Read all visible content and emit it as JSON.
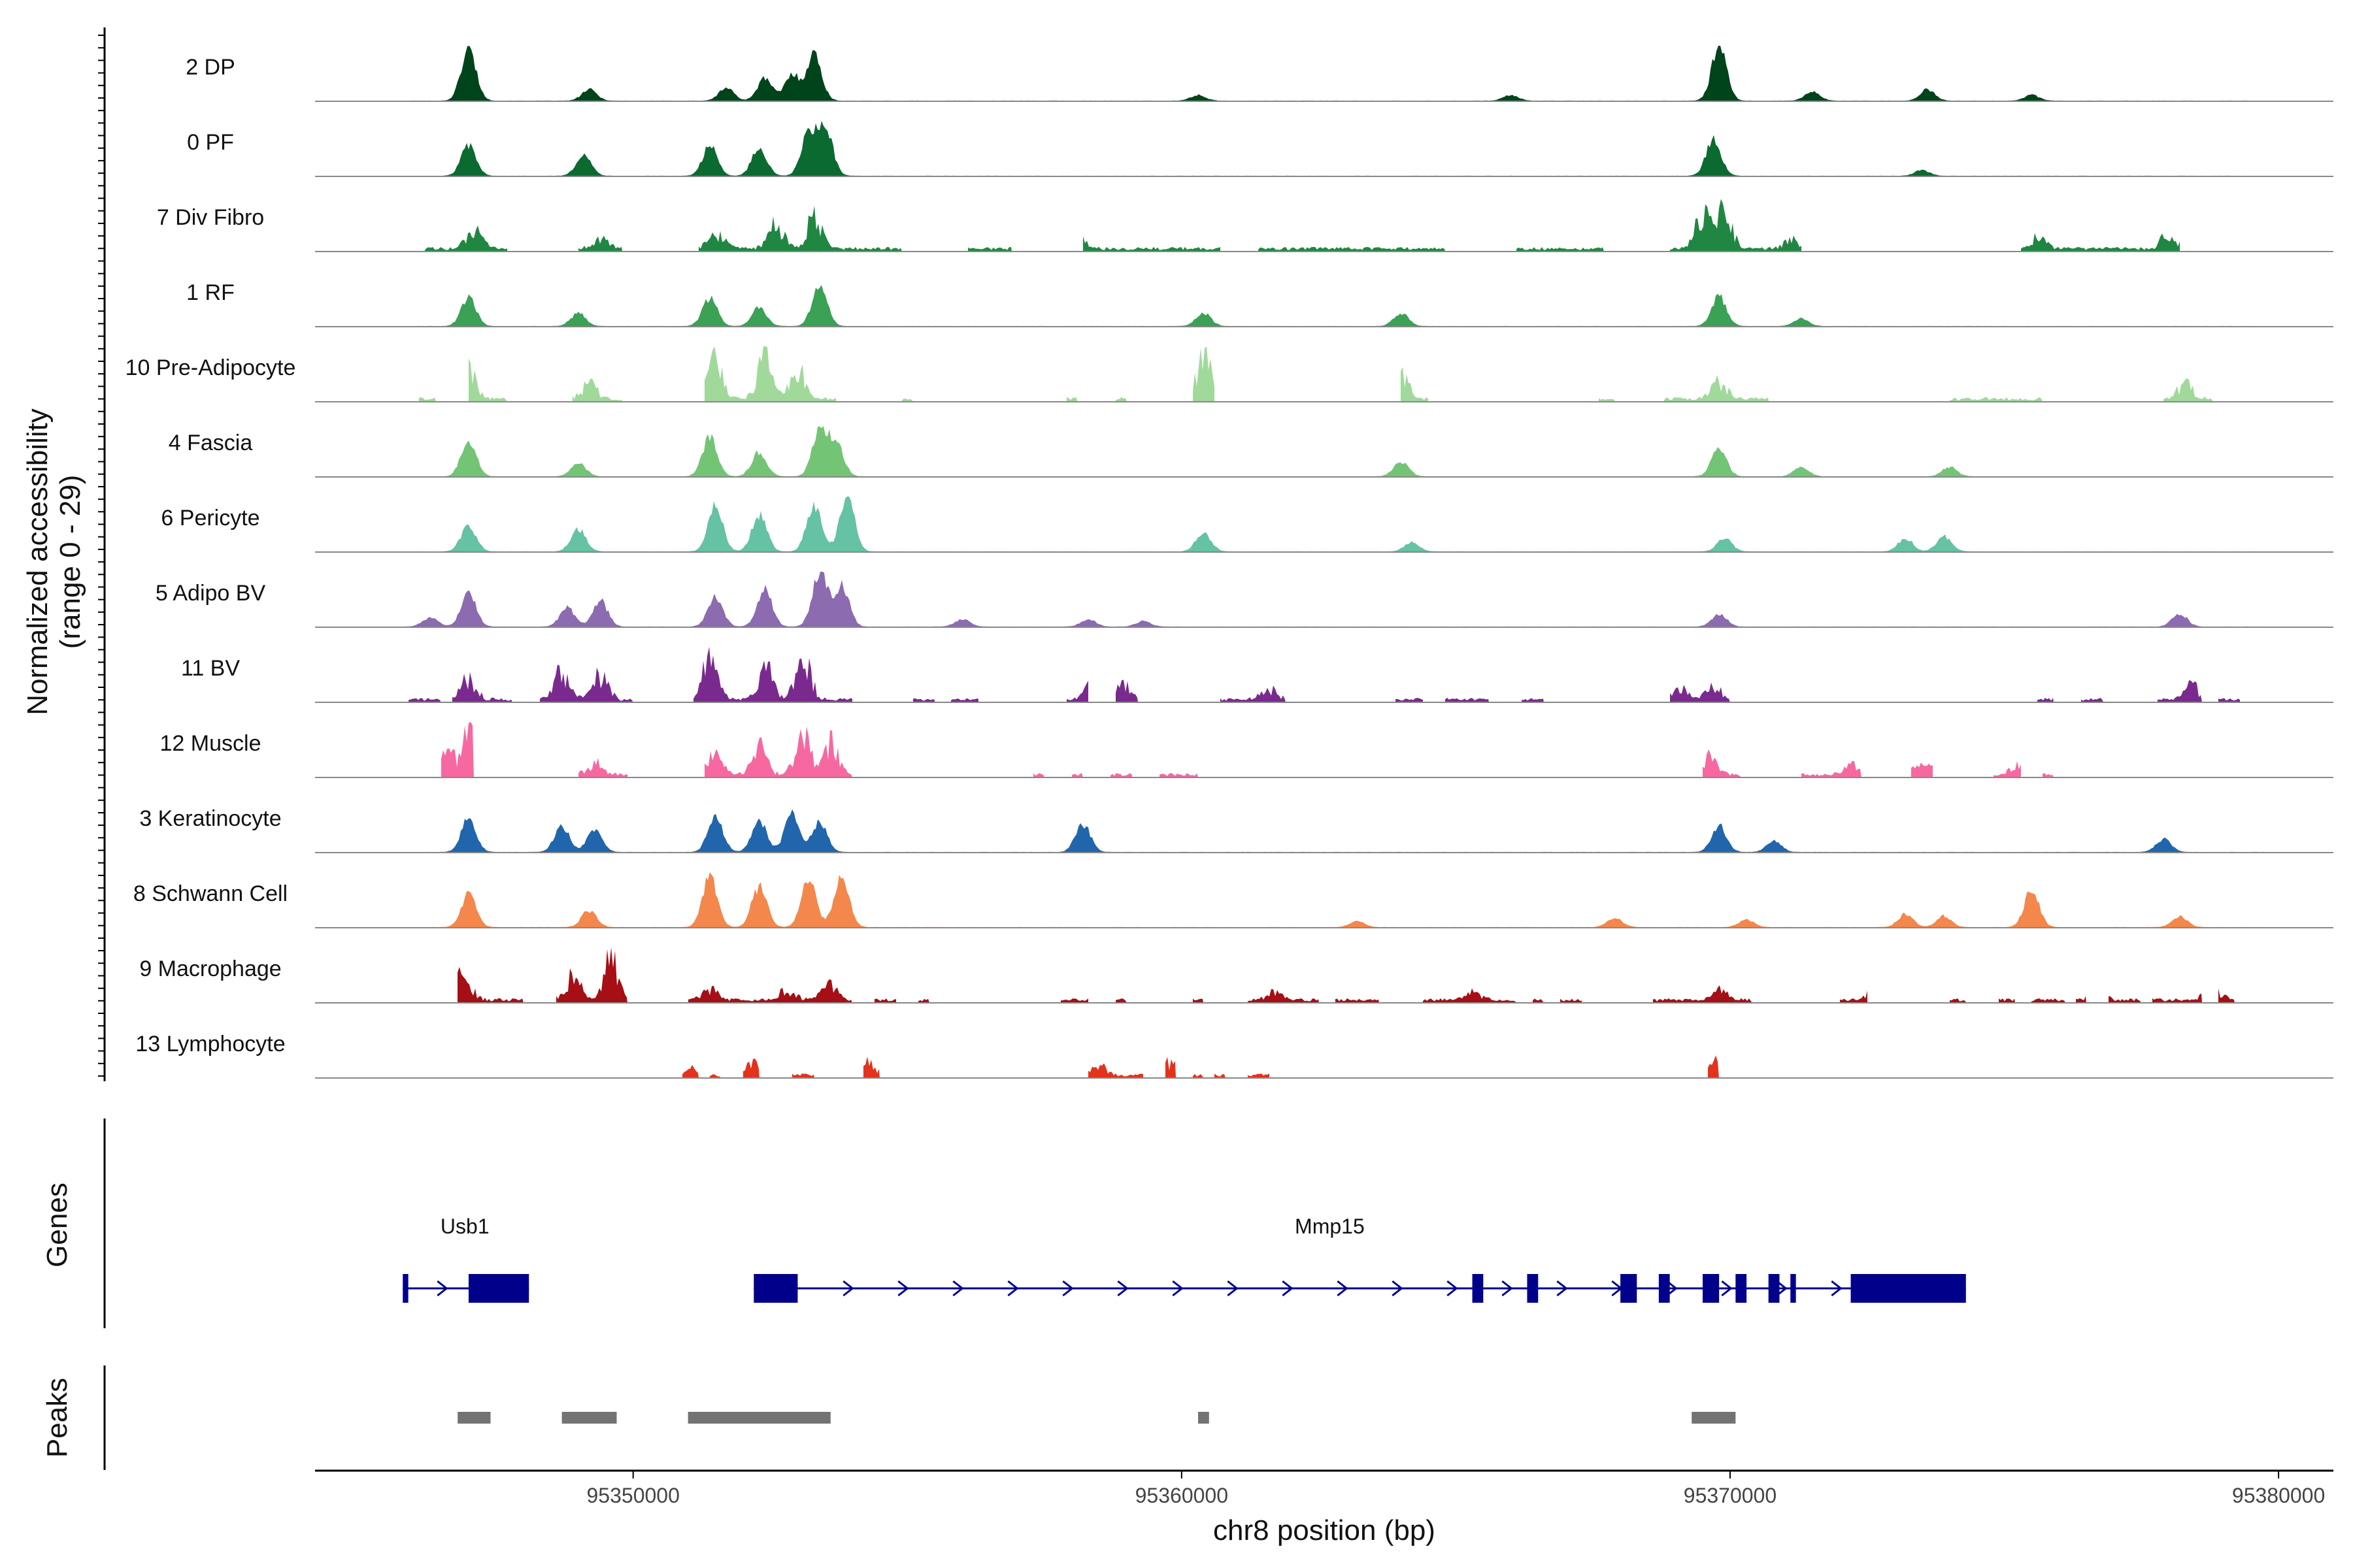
{
  "chart_data": {
    "type": "area",
    "title": "",
    "ylabel_line1": "Normalized accessibility",
    "ylabel_line2": "(range 0 - 29)",
    "xlabel": "chr8 position (bp)",
    "xlim": [
      95344200,
      95381000
    ],
    "ylim": [
      0,
      29
    ],
    "x_ticks": [
      95350000,
      95360000,
      95370000,
      95380000
    ],
    "x_tick_labels": [
      "95350000",
      "95360000",
      "95370000",
      "95380000"
    ],
    "series": [
      {
        "name": "2 DP",
        "color": "#00441b",
        "range": [
          95345900,
          95379600
        ],
        "peaks": [
          [
            95347000,
            28
          ],
          [
            95349200,
            6
          ],
          [
            95351700,
            7
          ],
          [
            95352400,
            12
          ],
          [
            95352900,
            14
          ],
          [
            95353300,
            25
          ],
          [
            95369800,
            29
          ],
          [
            95366000,
            3
          ],
          [
            95360300,
            3
          ],
          [
            95371500,
            5
          ],
          [
            95373600,
            6
          ],
          [
            95375500,
            3
          ]
        ]
      },
      {
        "name": "0 PF",
        "color": "#0b6a30",
        "range": [
          95346500,
          95379400
        ],
        "peaks": [
          [
            95347000,
            16
          ],
          [
            95349100,
            12
          ],
          [
            95351400,
            16
          ],
          [
            95352300,
            15
          ],
          [
            95353200,
            22
          ],
          [
            95353500,
            26
          ],
          [
            95369700,
            20
          ],
          [
            95373500,
            3
          ]
        ]
      },
      {
        "name": "7 Div Fibro",
        "color": "#1f8742",
        "range": [
          95346100,
          95378500
        ],
        "spiky": true,
        "segments": [
          [
            95346200,
            95347700
          ],
          [
            95349000,
            95349800
          ],
          [
            95351200,
            95354900
          ],
          [
            95356100,
            95356900
          ],
          [
            95358200,
            95360700
          ],
          [
            95361400,
            95364800
          ],
          [
            95366100,
            95367700
          ],
          [
            95368900,
            95371300
          ],
          [
            95375300,
            95378200
          ]
        ],
        "peaks": [
          [
            95347100,
            12
          ],
          [
            95349400,
            7
          ],
          [
            95351500,
            12
          ],
          [
            95352600,
            16
          ],
          [
            95353300,
            20
          ],
          [
            95358100,
            8
          ],
          [
            95369500,
            22
          ],
          [
            95369900,
            28
          ],
          [
            95371100,
            6
          ],
          [
            95375600,
            8
          ],
          [
            95378000,
            10
          ]
        ]
      },
      {
        "name": "1 RF",
        "color": "#3aa155",
        "range": [
          95346000,
          95379600
        ],
        "peaks": [
          [
            95347000,
            15
          ],
          [
            95349000,
            7
          ],
          [
            95351400,
            15
          ],
          [
            95352300,
            10
          ],
          [
            95353400,
            22
          ],
          [
            95360400,
            7
          ],
          [
            95364000,
            7
          ],
          [
            95369800,
            16
          ],
          [
            95371300,
            4
          ]
        ]
      },
      {
        "name": "10 Pre-Adipocyte",
        "color": "#a1d99b",
        "range": [
          95346000,
          95379000
        ],
        "spiky": true,
        "segments": [
          [
            95346100,
            95346400
          ],
          [
            95347000,
            95347700
          ],
          [
            95348900,
            95349800
          ],
          [
            95351300,
            95353700
          ],
          [
            95354900,
            95355100
          ],
          [
            95357900,
            95358100
          ],
          [
            95358800,
            95359000
          ],
          [
            95360200,
            95360600
          ],
          [
            95364000,
            95364500
          ],
          [
            95367600,
            95367900
          ],
          [
            95368800,
            95370700
          ],
          [
            95374000,
            95375700
          ],
          [
            95377900,
            95378800
          ]
        ],
        "peaks": [
          [
            95347000,
            20
          ],
          [
            95349200,
            10
          ],
          [
            95351500,
            26
          ],
          [
            95352400,
            27
          ],
          [
            95353000,
            20
          ],
          [
            95360400,
            29
          ],
          [
            95364000,
            17
          ],
          [
            95369800,
            12
          ],
          [
            95378300,
            10
          ]
        ]
      },
      {
        "name": "4 Fascia",
        "color": "#74c476",
        "range": [
          95346000,
          95379600
        ],
        "peaks": [
          [
            95347000,
            20
          ],
          [
            95349000,
            7
          ],
          [
            95351400,
            21
          ],
          [
            95352300,
            13
          ],
          [
            95353400,
            24
          ],
          [
            95353700,
            18
          ],
          [
            95364000,
            8
          ],
          [
            95369800,
            15
          ],
          [
            95371300,
            5
          ],
          [
            95374000,
            5
          ]
        ]
      },
      {
        "name": "6 Pericyte",
        "color": "#66c2a4",
        "range": [
          95346000,
          95379600
        ],
        "peaks": [
          [
            95347000,
            14
          ],
          [
            95349000,
            12
          ],
          [
            95351500,
            24
          ],
          [
            95352300,
            20
          ],
          [
            95353300,
            25
          ],
          [
            95353900,
            29
          ],
          [
            95360400,
            10
          ],
          [
            95364200,
            5
          ],
          [
            95369900,
            7
          ],
          [
            95373200,
            7
          ],
          [
            95373900,
            8
          ]
        ]
      },
      {
        "name": "5 Adipo BV",
        "color": "#8c6bb1",
        "range": [
          95345800,
          95379800
        ],
        "peaks": [
          [
            95346300,
            5
          ],
          [
            95347000,
            18
          ],
          [
            95348800,
            10
          ],
          [
            95349400,
            14
          ],
          [
            95351500,
            16
          ],
          [
            95352400,
            20
          ],
          [
            95353400,
            29
          ],
          [
            95353800,
            22
          ],
          [
            95356000,
            4
          ],
          [
            95358300,
            4
          ],
          [
            95359300,
            3
          ],
          [
            95369800,
            7
          ],
          [
            95378200,
            7
          ]
        ]
      },
      {
        "name": "11 BV",
        "color": "#7a2a8e",
        "range": [
          95345800,
          95379800
        ],
        "spiky": true,
        "segments": [
          [
            95345900,
            95346500
          ],
          [
            95346700,
            95347800
          ],
          [
            95348300,
            95350000
          ],
          [
            95351100,
            95354000
          ],
          [
            95355100,
            95355500
          ],
          [
            95355800,
            95356300
          ],
          [
            95357900,
            95358300
          ],
          [
            95358800,
            95359200
          ],
          [
            95360700,
            95361900
          ],
          [
            95363900,
            95364400
          ],
          [
            95364800,
            95365600
          ],
          [
            95366200,
            95366600
          ],
          [
            95368900,
            95370000
          ],
          [
            95375600,
            95375900
          ],
          [
            95376400,
            95376800
          ],
          [
            95377800,
            95378600
          ],
          [
            95378900,
            95379300
          ]
        ],
        "peaks": [
          [
            95347000,
            14
          ],
          [
            95348700,
            20
          ],
          [
            95349400,
            16
          ],
          [
            95351400,
            29
          ],
          [
            95352400,
            23
          ],
          [
            95353100,
            28
          ],
          [
            95358400,
            14
          ],
          [
            95358900,
            12
          ],
          [
            95361600,
            8
          ],
          [
            95369100,
            9
          ],
          [
            95369700,
            9
          ],
          [
            95378400,
            10
          ]
        ]
      },
      {
        "name": "12 Muscle",
        "color": "#f768a1",
        "range": [
          95345800,
          95379800
        ],
        "spiky": true,
        "segments": [
          [
            95346500,
            95347100
          ],
          [
            95349000,
            95349900
          ],
          [
            95351300,
            95354000
          ],
          [
            95357300,
            95357500
          ],
          [
            95358000,
            95358200
          ],
          [
            95358700,
            95359100
          ],
          [
            95359600,
            95360300
          ],
          [
            95369500,
            95370200
          ],
          [
            95371300,
            95372400
          ],
          [
            95373300,
            95373700
          ],
          [
            95374800,
            95375300
          ],
          [
            95375700,
            95375900
          ]
        ],
        "peaks": [
          [
            95346600,
            12
          ],
          [
            95347000,
            29
          ],
          [
            95349300,
            8
          ],
          [
            95351500,
            14
          ],
          [
            95352300,
            18
          ],
          [
            95353100,
            27
          ],
          [
            95353600,
            22
          ],
          [
            95369600,
            12
          ],
          [
            95372200,
            10
          ],
          [
            95373500,
            12
          ],
          [
            95375200,
            6
          ]
        ]
      },
      {
        "name": "3 Keratinocyte",
        "color": "#2166ac",
        "range": [
          95346000,
          95379800
        ],
        "peaks": [
          [
            95347000,
            18
          ],
          [
            95348700,
            14
          ],
          [
            95349300,
            12
          ],
          [
            95351500,
            19
          ],
          [
            95352300,
            17
          ],
          [
            95352900,
            20
          ],
          [
            95353400,
            16
          ],
          [
            95358200,
            15
          ],
          [
            95369800,
            14
          ],
          [
            95370800,
            6
          ],
          [
            95377900,
            7
          ]
        ]
      },
      {
        "name": "8 Schwann Cell",
        "color": "#f4874b",
        "range": [
          95346000,
          95379800
        ],
        "peaks": [
          [
            95347000,
            18
          ],
          [
            95349200,
            9
          ],
          [
            95351400,
            27
          ],
          [
            95352300,
            22
          ],
          [
            95353200,
            25
          ],
          [
            95353800,
            29
          ],
          [
            95363200,
            3
          ],
          [
            95367900,
            5
          ],
          [
            95370300,
            4
          ],
          [
            95373200,
            7
          ],
          [
            95373900,
            6
          ],
          [
            95375500,
            20
          ],
          [
            95378200,
            6
          ]
        ]
      },
      {
        "name": "9 Macrophage",
        "color": "#a50f15",
        "range": [
          95346000,
          95379800
        ],
        "spiky": true,
        "segments": [
          [
            95346800,
            95348000
          ],
          [
            95348600,
            95349900
          ],
          [
            95351000,
            95354000
          ],
          [
            95354400,
            95354800
          ],
          [
            95355200,
            95355400
          ],
          [
            95357800,
            95358300
          ],
          [
            95358800,
            95359000
          ],
          [
            95360200,
            95360400
          ],
          [
            95361200,
            95362500
          ],
          [
            95362800,
            95363600
          ],
          [
            95364400,
            95366100
          ],
          [
            95366400,
            95366600
          ],
          [
            95366900,
            95367300
          ],
          [
            95368600,
            95370400
          ],
          [
            95372000,
            95372500
          ],
          [
            95374000,
            95374300
          ],
          [
            95374900,
            95375200
          ],
          [
            95375500,
            95376100
          ],
          [
            95376300,
            95376500
          ],
          [
            95376900,
            95377500
          ],
          [
            95377700,
            95378600
          ],
          [
            95378900,
            95379200
          ]
        ],
        "peaks": [
          [
            95346900,
            19
          ],
          [
            95348900,
            16
          ],
          [
            95349600,
            28
          ],
          [
            95351400,
            7
          ],
          [
            95352800,
            8
          ],
          [
            95353600,
            12
          ],
          [
            95361700,
            5
          ],
          [
            95365300,
            5
          ],
          [
            95369800,
            8
          ],
          [
            95372600,
            5
          ],
          [
            95376700,
            7
          ],
          [
            95378800,
            9
          ]
        ]
      },
      {
        "name": "13 Lymphocyte",
        "color": "#e3331d",
        "range": [
          95346000,
          95379800
        ],
        "spiky": true,
        "segments": [
          [
            95350900,
            95351200
          ],
          [
            95351400,
            95351600
          ],
          [
            95352000,
            95352300
          ],
          [
            95352900,
            95353300
          ],
          [
            95354200,
            95354500
          ],
          [
            95358300,
            95359300
          ],
          [
            95359700,
            95359900
          ],
          [
            95360200,
            95360400
          ],
          [
            95360600,
            95360800
          ],
          [
            95361200,
            95361600
          ],
          [
            95369600,
            95369800
          ]
        ],
        "peaks": [
          [
            95351100,
            5
          ],
          [
            95352200,
            8
          ],
          [
            95354300,
            9
          ],
          [
            95358500,
            6
          ],
          [
            95359800,
            9
          ],
          [
            95369800,
            10
          ]
        ]
      }
    ],
    "genes": [
      {
        "name": "Usb1",
        "start": 95345800,
        "end": 95348100,
        "exons": [
          [
            95345800,
            95345900
          ],
          [
            95347000,
            95348100
          ]
        ]
      },
      {
        "name": "Mmp15",
        "start": 95352200,
        "end": 95374300,
        "exons": [
          [
            95352200,
            95353000
          ],
          [
            95365300,
            95365500
          ],
          [
            95366300,
            95366500
          ],
          [
            95368000,
            95368300
          ],
          [
            95368700,
            95368900
          ],
          [
            95369500,
            95369800
          ],
          [
            95370100,
            95370300
          ],
          [
            95370700,
            95370900
          ],
          [
            95371100,
            95371200
          ],
          [
            95372200,
            95374300
          ]
        ]
      }
    ],
    "peak_regions": [
      [
        95346800,
        95347400
      ],
      [
        95348700,
        95349700
      ],
      [
        95351000,
        95353600
      ],
      [
        95360300,
        95360500
      ],
      [
        95369300,
        95370100
      ]
    ],
    "side_labels": {
      "genes": "Genes",
      "peaks": "Peaks"
    },
    "colors": {
      "gene": "#00008b",
      "peak": "#737373",
      "baseline": "#888888",
      "axis": "#000000"
    }
  }
}
